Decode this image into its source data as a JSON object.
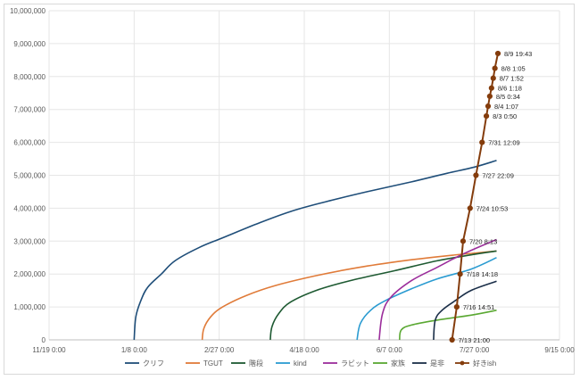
{
  "chart_data": {
    "type": "line",
    "title": "",
    "xlabel": "",
    "ylabel": "",
    "grid": true,
    "legend_position": "bottom",
    "x_ticks": [
      "11/19 0:00",
      "1/8 0:00",
      "2/27 0:00",
      "4/18 0:00",
      "6/7 0:00",
      "7/27 0:00",
      "9/15 0:00"
    ],
    "y_ticks": [
      "0",
      "1,000,000",
      "2,000,000",
      "3,000,000",
      "4,000,000",
      "5,000,000",
      "6,000,000",
      "7,000,000",
      "8,000,000",
      "9,000,000",
      "10,000,000"
    ],
    "xlim": [
      "11/19 0:00",
      "9/15 0:00"
    ],
    "ylim": [
      0,
      10000000
    ],
    "series": [
      {
        "name": "クリフ",
        "color": "#1f4e79",
        "markers": false,
        "points": [
          [
            "1/8",
            0
          ],
          [
            "1/9",
            700000
          ],
          [
            "1/12",
            1200000
          ],
          [
            "1/16",
            1600000
          ],
          [
            "1/24",
            2000000
          ],
          [
            "2/1",
            2400000
          ],
          [
            "2/15",
            2800000
          ],
          [
            "3/1",
            3100000
          ],
          [
            "3/20",
            3500000
          ],
          [
            "4/10",
            3900000
          ],
          [
            "5/1",
            4200000
          ],
          [
            "5/25",
            4500000
          ],
          [
            "6/20",
            4800000
          ],
          [
            "7/10",
            5050000
          ],
          [
            "7/27",
            5250000
          ],
          [
            "8/9",
            5450000
          ]
        ]
      },
      {
        "name": "TGUT",
        "color": "#e07b39",
        "markers": false,
        "points": [
          [
            "2/17",
            0
          ],
          [
            "2/18",
            350000
          ],
          [
            "2/22",
            700000
          ],
          [
            "3/1",
            1000000
          ],
          [
            "3/15",
            1350000
          ],
          [
            "4/1",
            1650000
          ],
          [
            "4/25",
            1950000
          ],
          [
            "5/20",
            2200000
          ],
          [
            "6/15",
            2400000
          ],
          [
            "7/10",
            2550000
          ],
          [
            "8/9",
            2700000
          ]
        ]
      },
      {
        "name": "階段",
        "color": "#1e5a32",
        "markers": false,
        "points": [
          [
            "3/29",
            0
          ],
          [
            "3/30",
            400000
          ],
          [
            "4/3",
            800000
          ],
          [
            "4/10",
            1150000
          ],
          [
            "4/25",
            1500000
          ],
          [
            "5/15",
            1800000
          ],
          [
            "6/10",
            2100000
          ],
          [
            "7/5",
            2400000
          ],
          [
            "7/27",
            2600000
          ],
          [
            "8/9",
            2700000
          ]
        ]
      },
      {
        "name": "kind",
        "color": "#2a9bd1",
        "markers": false,
        "points": [
          [
            "5/19",
            0
          ],
          [
            "5/21",
            500000
          ],
          [
            "5/27",
            900000
          ],
          [
            "6/5",
            1200000
          ],
          [
            "6/20",
            1550000
          ],
          [
            "7/5",
            1850000
          ],
          [
            "7/25",
            2150000
          ],
          [
            "8/9",
            2500000
          ]
        ]
      },
      {
        "name": "ラビット",
        "color": "#9b2d9b",
        "markers": false,
        "points": [
          [
            "6/1",
            0
          ],
          [
            "6/3",
            800000
          ],
          [
            "6/8",
            1300000
          ],
          [
            "6/20",
            1800000
          ],
          [
            "7/5",
            2200000
          ],
          [
            "7/20",
            2600000
          ],
          [
            "8/9",
            3050000
          ]
        ]
      },
      {
        "name": "家族",
        "color": "#5aa832",
        "markers": false,
        "points": [
          [
            "6/13",
            0
          ],
          [
            "6/14",
            300000
          ],
          [
            "6/20",
            450000
          ],
          [
            "7/5",
            600000
          ],
          [
            "7/25",
            750000
          ],
          [
            "8/9",
            900000
          ]
        ]
      },
      {
        "name": "是非",
        "color": "#1a2e48",
        "markers": false,
        "points": [
          [
            "7/3",
            0
          ],
          [
            "7/4",
            600000
          ],
          [
            "7/8",
            900000
          ],
          [
            "7/16",
            1200000
          ],
          [
            "7/25",
            1500000
          ],
          [
            "8/9",
            1780000
          ]
        ]
      },
      {
        "name": "好きish",
        "color": "#843c0c",
        "markers": true,
        "points": [
          [
            "7/13 21:00",
            0
          ],
          [
            "7/16 14:51",
            1000000
          ],
          [
            "7/18 14:18",
            2000000
          ],
          [
            "7/20 8:13",
            3000000
          ],
          [
            "7/24 10:53",
            4000000
          ],
          [
            "7/27 22:09",
            5000000
          ],
          [
            "7/31 12:09",
            6000000
          ],
          [
            "8/3 0:50",
            6800000
          ],
          [
            "8/4 1:07",
            7100000
          ],
          [
            "8/5 0:34",
            7400000
          ],
          [
            "8/6 1:18",
            7650000
          ],
          [
            "8/7 1:52",
            7950000
          ],
          [
            "8/8 1:05",
            8250000
          ],
          [
            "8/9 19:43",
            8700000
          ]
        ],
        "labels": [
          "7/13 21:00",
          "7/16 14:51",
          "7/18 14:18",
          "7/20 8:13",
          "7/24 10:53",
          "7/27 22:09",
          "7/31 12:09",
          "8/3 0:50",
          "8/4 1:07",
          "8/5 0:34",
          "8/6 1:18",
          "8/7 1:52",
          "8/8 1:05",
          "8/9 19:43"
        ]
      }
    ]
  }
}
